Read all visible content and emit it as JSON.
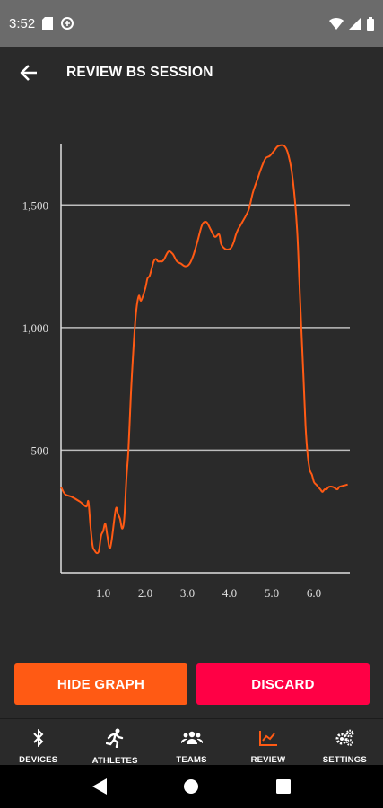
{
  "status_bar": {
    "time": "3:52",
    "icons": [
      "sd-card-icon",
      "data-saver-icon",
      "wifi-icon",
      "signal-icon",
      "battery-icon"
    ]
  },
  "header": {
    "title": "REVIEW BS SESSION",
    "back_icon": "arrow-back-icon"
  },
  "chart_data": {
    "type": "line",
    "title": "",
    "xlabel": "",
    "ylabel": "",
    "xlim": [
      0,
      6.85
    ],
    "ylim": [
      0,
      1750
    ],
    "x_ticks": [
      1,
      2,
      3,
      4,
      5,
      6
    ],
    "x_tick_labels": [
      "1.0",
      "2.0",
      "3.0",
      "4.0",
      "5.0",
      "6.0"
    ],
    "y_ticks": [
      500,
      1000,
      1500
    ],
    "y_tick_labels": [
      "500",
      "1,000",
      "1,500"
    ],
    "grid": "horizontal",
    "line_color": "#ff5a14",
    "series": [
      {
        "x": [
          0,
          0.1,
          0.25,
          0.45,
          0.6,
          0.65,
          0.7,
          0.75,
          0.8,
          0.85,
          0.9,
          0.95,
          1.0,
          1.05,
          1.1,
          1.15,
          1.2,
          1.3,
          1.35,
          1.4,
          1.45,
          1.5,
          1.55,
          1.6,
          1.65,
          1.7,
          1.75,
          1.8,
          1.85,
          1.9,
          2.0,
          2.05,
          2.1,
          2.15,
          2.2,
          2.25,
          2.3,
          2.35,
          2.4,
          2.45,
          2.55,
          2.65,
          2.75,
          2.85,
          2.95,
          3.05,
          3.15,
          3.25,
          3.35,
          3.45,
          3.55,
          3.65,
          3.75,
          3.8,
          3.9,
          4.0,
          4.05,
          4.1,
          4.15,
          4.2,
          4.3,
          4.45,
          4.55,
          4.65,
          4.75,
          4.85,
          4.95,
          5.05,
          5.15,
          5.3,
          5.4,
          5.5,
          5.6,
          5.65,
          5.7,
          5.75,
          5.8,
          5.85,
          5.9,
          5.95,
          6.0,
          6.05,
          6.1,
          6.15,
          6.2,
          6.25,
          6.3,
          6.35,
          6.45,
          6.55,
          6.6,
          6.7,
          6.8
        ],
        "y": [
          350,
          320,
          310,
          290,
          270,
          290,
          190,
          110,
          90,
          80,
          90,
          150,
          170,
          200,
          150,
          100,
          130,
          260,
          240,
          220,
          180,
          220,
          380,
          500,
          700,
          860,
          1000,
          1090,
          1130,
          1110,
          1160,
          1200,
          1210,
          1240,
          1270,
          1280,
          1270,
          1270,
          1270,
          1280,
          1310,
          1300,
          1270,
          1260,
          1250,
          1260,
          1300,
          1360,
          1420,
          1430,
          1400,
          1370,
          1380,
          1340,
          1320,
          1320,
          1330,
          1350,
          1380,
          1400,
          1430,
          1480,
          1550,
          1600,
          1650,
          1690,
          1700,
          1720,
          1740,
          1740,
          1700,
          1600,
          1400,
          1200,
          1000,
          800,
          600,
          480,
          420,
          400,
          370,
          360,
          350,
          340,
          330,
          340,
          340,
          350,
          350,
          340,
          350,
          355,
          360
        ]
      }
    ]
  },
  "buttons": {
    "hide_graph": "HIDE GRAPH",
    "discard": "DISCARD"
  },
  "bottom_nav": {
    "items": [
      {
        "label": "DEVICES",
        "icon": "bluetooth-icon"
      },
      {
        "label": "ATHLETES",
        "icon": "runner-icon"
      },
      {
        "label": "TEAMS",
        "icon": "group-icon"
      },
      {
        "label": "REVIEW",
        "icon": "chart-icon",
        "active": true
      },
      {
        "label": "SETTINGS",
        "icon": "gears-icon"
      }
    ],
    "active_color": "#ff5a14"
  },
  "system_nav": {
    "icons": [
      "back-triangle-icon",
      "home-circle-icon",
      "recents-square-icon"
    ]
  }
}
